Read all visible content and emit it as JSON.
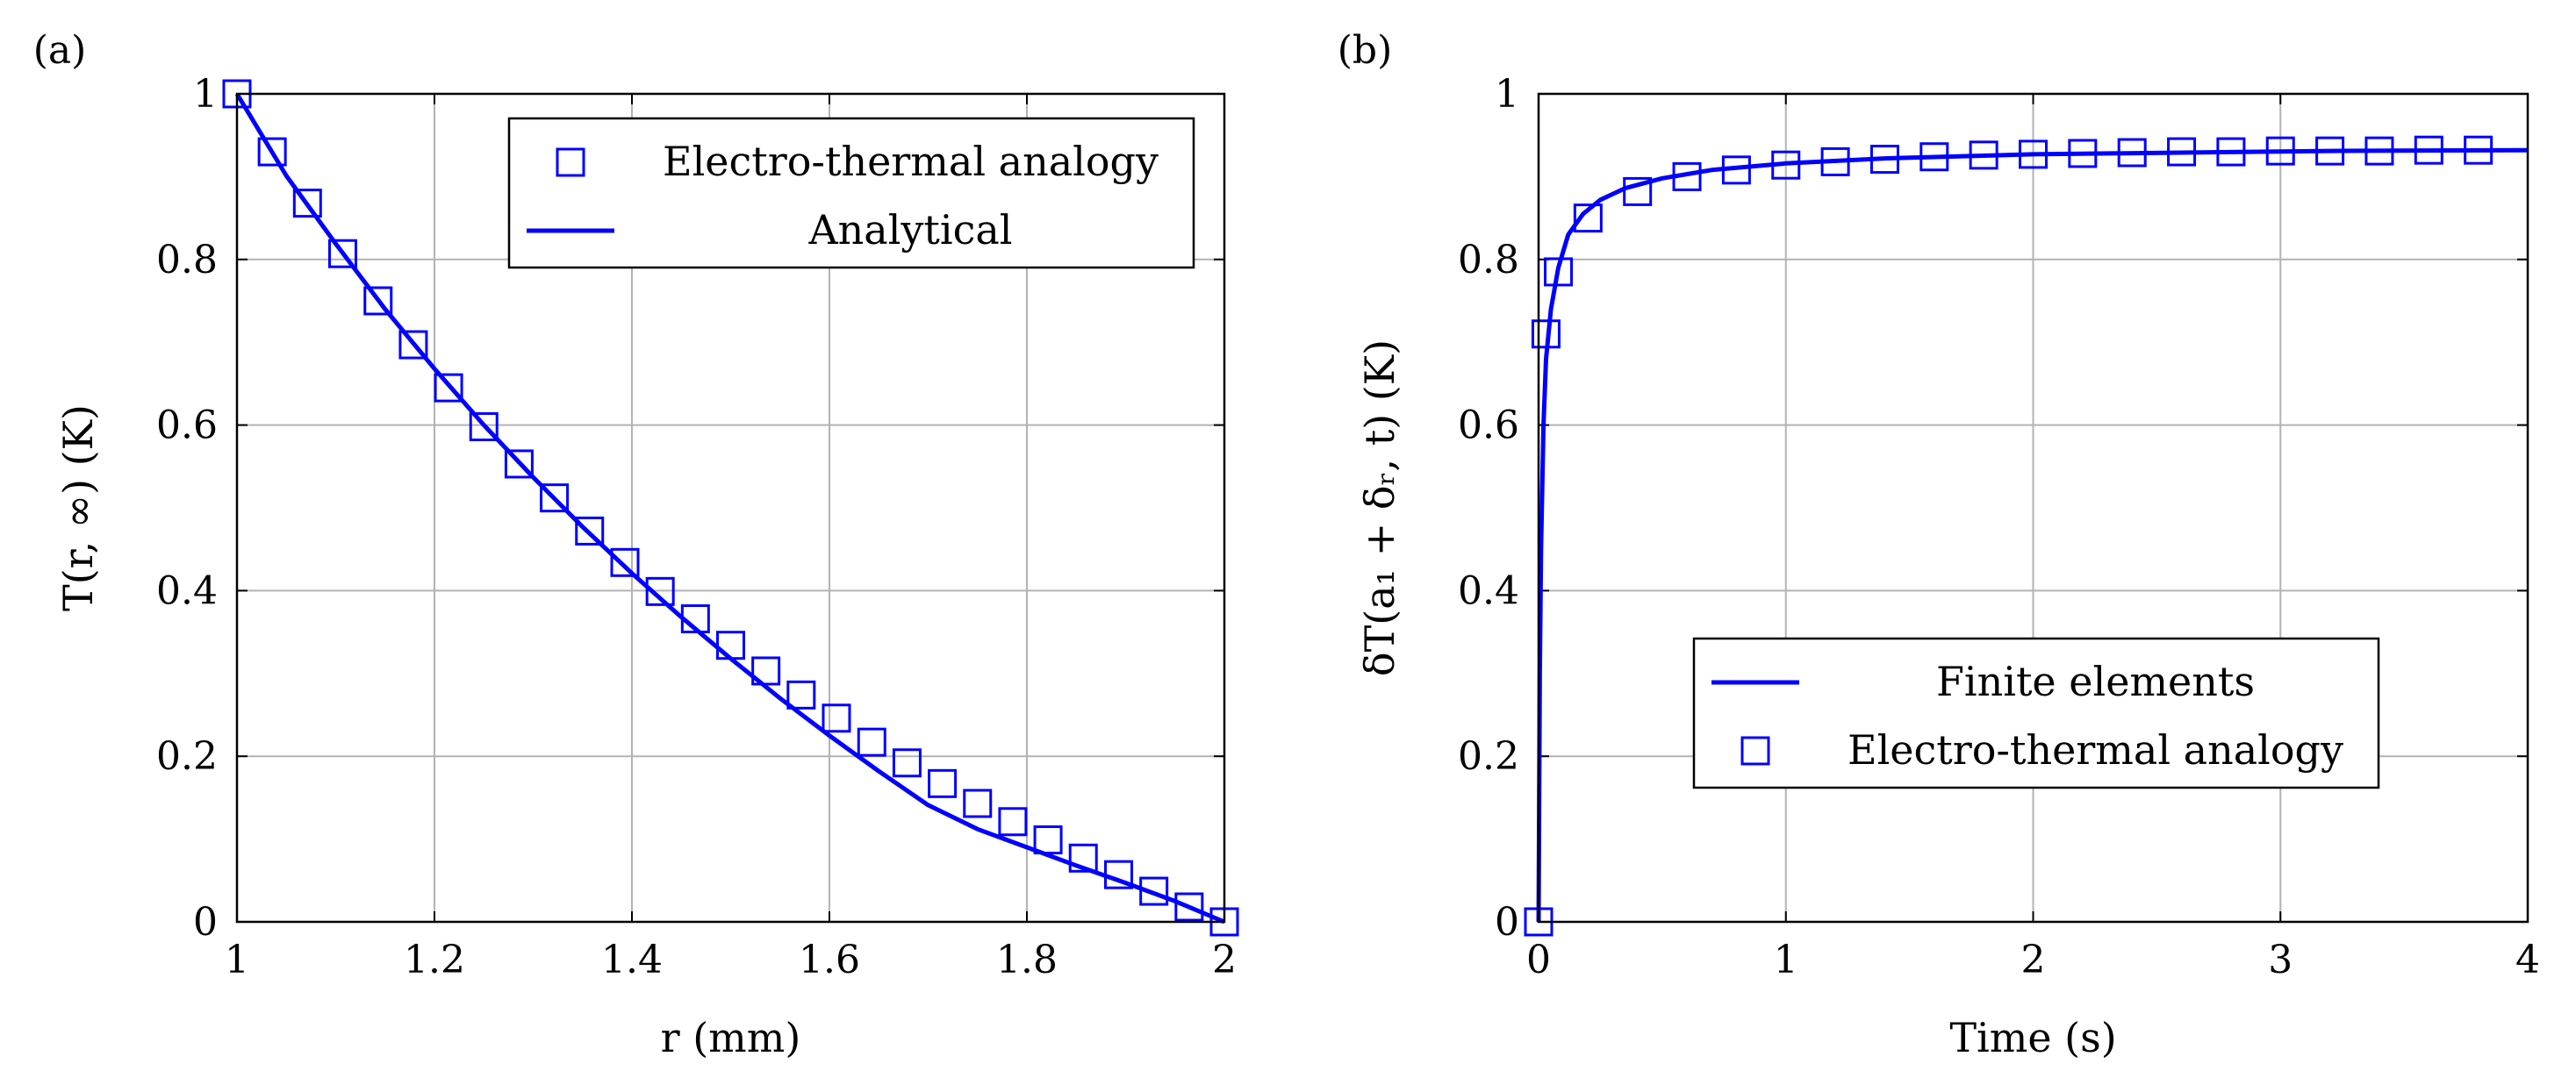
{
  "chart_data": [
    {
      "type": "line",
      "panel_label": "(a)",
      "title": "",
      "xlabel": "r (mm)",
      "ylabel": "T(r, ∞) (K)",
      "xlim": [
        1,
        2
      ],
      "ylim": [
        0,
        1
      ],
      "grid": true,
      "xticks": [
        1,
        1.2,
        1.4,
        1.6,
        1.8,
        2
      ],
      "xtick_labels": [
        "1",
        "1.2",
        "1.4",
        "1.6",
        "1.8",
        "2"
      ],
      "yticks": [
        0,
        0.2,
        0.4,
        0.6,
        0.8,
        1
      ],
      "ytick_labels": [
        "0",
        "0.2",
        "0.4",
        "0.6",
        "0.8",
        "1"
      ],
      "legend_position": "top-right",
      "series": [
        {
          "name": "Electro-thermal analogy",
          "style": "markers",
          "marker": "square",
          "color": "#0000ff",
          "x": [
            1.0,
            1.0357,
            1.0714,
            1.1071,
            1.1429,
            1.1786,
            1.2143,
            1.25,
            1.2857,
            1.3214,
            1.3571,
            1.3929,
            1.4286,
            1.4643,
            1.5,
            1.5357,
            1.5714,
            1.6071,
            1.6429,
            1.6786,
            1.7143,
            1.75,
            1.7857,
            1.8214,
            1.8571,
            1.8929,
            1.9286,
            1.9643,
            2.0
          ],
          "y": [
            1.0,
            0.93,
            0.868,
            0.807,
            0.75,
            0.697,
            0.645,
            0.598,
            0.553,
            0.512,
            0.472,
            0.434,
            0.399,
            0.366,
            0.334,
            0.303,
            0.274,
            0.246,
            0.217,
            0.192,
            0.167,
            0.143,
            0.121,
            0.099,
            0.077,
            0.057,
            0.037,
            0.018,
            0.0
          ]
        },
        {
          "name": "Analytical",
          "style": "line",
          "color": "#0000ff",
          "x": [
            1.0,
            1.05,
            1.1,
            1.15,
            1.2,
            1.25,
            1.3,
            1.35,
            1.4,
            1.45,
            1.5,
            1.55,
            1.6,
            1.65,
            1.7,
            1.75,
            1.8,
            1.85,
            1.9,
            1.95,
            2.0
          ],
          "y": [
            1.0,
            0.901,
            0.819,
            0.74,
            0.668,
            0.6,
            0.537,
            0.477,
            0.421,
            0.368,
            0.318,
            0.27,
            0.225,
            0.182,
            0.141,
            0.112,
            0.09,
            0.068,
            0.047,
            0.025,
            0.0
          ]
        }
      ]
    },
    {
      "type": "line",
      "panel_label": "(b)",
      "title": "",
      "xlabel": "Time (s)",
      "ylabel": "δT(a₁ + δᵣ, t) (K)",
      "xlim": [
        0,
        4
      ],
      "ylim": [
        0,
        1
      ],
      "grid": true,
      "xticks": [
        0,
        1,
        2,
        3,
        4
      ],
      "xtick_labels": [
        "0",
        "1",
        "2",
        "3",
        "4"
      ],
      "yticks": [
        0,
        0.2,
        0.4,
        0.6,
        0.8,
        1
      ],
      "ytick_labels": [
        "0",
        "0.2",
        "0.4",
        "0.6",
        "0.8",
        "1"
      ],
      "legend_position": "center-right",
      "series": [
        {
          "name": "Finite elements",
          "style": "line",
          "color": "#0000ff",
          "x": [
            0,
            0.005,
            0.01,
            0.02,
            0.03,
            0.05,
            0.08,
            0.12,
            0.18,
            0.25,
            0.35,
            0.5,
            0.7,
            1.0,
            1.4,
            2.0,
            2.6,
            3.2,
            4.0
          ],
          "y": [
            0,
            0.3,
            0.45,
            0.6,
            0.68,
            0.74,
            0.79,
            0.83,
            0.855,
            0.872,
            0.886,
            0.898,
            0.908,
            0.916,
            0.922,
            0.927,
            0.929,
            0.931,
            0.932
          ]
        },
        {
          "name": "Electro-thermal analogy",
          "style": "markers",
          "marker": "square",
          "color": "#0000ff",
          "x": [
            0,
            0.03,
            0.08,
            0.2,
            0.4,
            0.6,
            0.8,
            1.0,
            1.2,
            1.4,
            1.6,
            1.8,
            2.0,
            2.2,
            2.4,
            2.6,
            2.8,
            3.0,
            3.2,
            3.4,
            3.6,
            3.8
          ],
          "y": [
            0,
            0.71,
            0.785,
            0.85,
            0.882,
            0.9,
            0.908,
            0.914,
            0.918,
            0.921,
            0.924,
            0.926,
            0.927,
            0.928,
            0.929,
            0.93,
            0.93,
            0.931,
            0.931,
            0.931,
            0.932,
            0.932
          ]
        }
      ]
    }
  ]
}
